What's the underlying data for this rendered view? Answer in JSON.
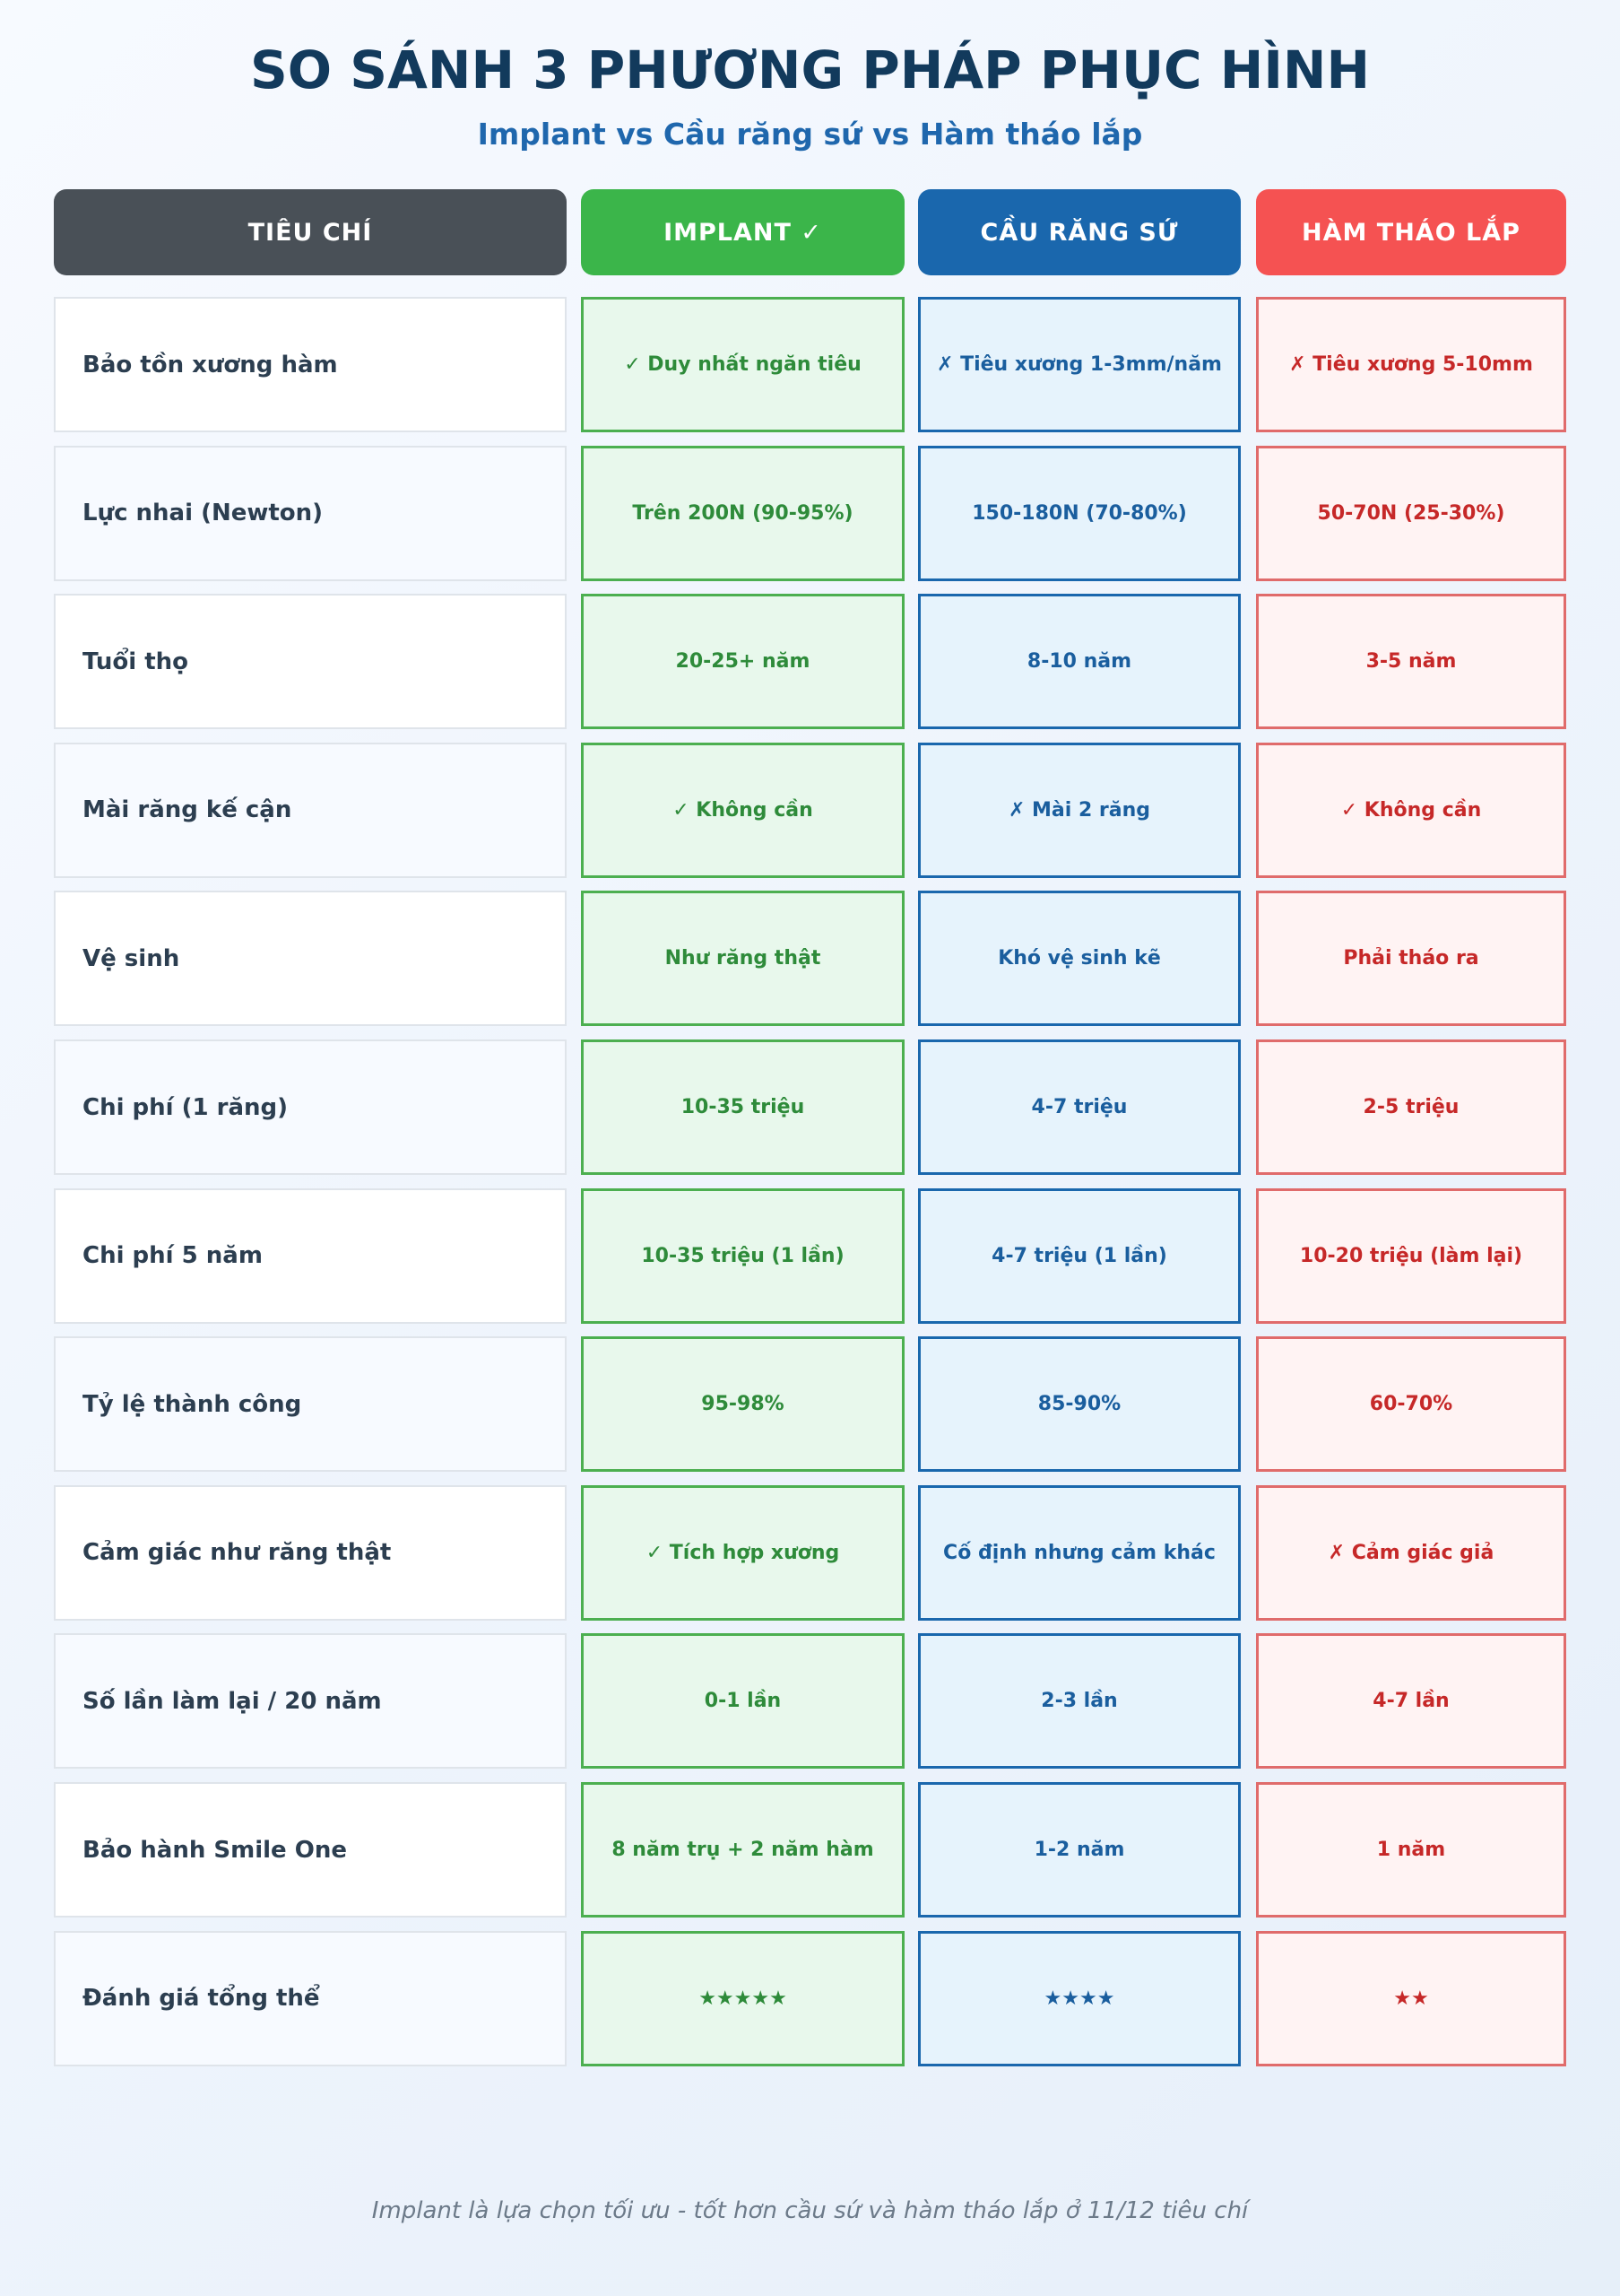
{
  "header": {
    "title": "SO SÁNH 3 PHƯƠNG PHÁP PHỤC HÌNH",
    "subtitle": "Implant vs Cầu răng sứ vs Hàm tháo lắp"
  },
  "table": {
    "columns": [
      "TIÊU CHÍ",
      "IMPLANT ✓",
      "CẦU RĂNG SỨ",
      "HÀM THÁO LẮP"
    ],
    "rows": [
      [
        "Bảo tồn xương hàm",
        "✓ Duy nhất ngăn tiêu",
        "✗ Tiêu xương 1-3mm/năm",
        "✗ Tiêu xương 5-10mm"
      ],
      [
        "Lực nhai (Newton)",
        "Trên 200N (90-95%)",
        "150-180N (70-80%)",
        "50-70N (25-30%)"
      ],
      [
        "Tuổi thọ",
        "20-25+ năm",
        "8-10 năm",
        "3-5 năm"
      ],
      [
        "Mài răng kế cận",
        "✓ Không cần",
        "✗ Mài 2 răng",
        "✓ Không cần"
      ],
      [
        "Vệ sinh",
        "Như răng thật",
        "Khó vệ sinh kẽ",
        "Phải tháo ra"
      ],
      [
        "Chi phí (1 răng)",
        "10-35 triệu",
        "4-7 triệu",
        "2-5 triệu"
      ],
      [
        "Chi phí 5 năm",
        "10-35 triệu (1 lần)",
        "4-7 triệu (1 lần)",
        "10-20 triệu (làm lại)"
      ],
      [
        "Tỷ lệ thành công",
        "95-98%",
        "85-90%",
        "60-70%"
      ],
      [
        "Cảm giác như răng thật",
        "✓ Tích hợp xương",
        "Cố định nhưng cảm khác",
        "✗ Cảm giác giả"
      ],
      [
        "Số lần làm lại / 20 năm",
        "0-1 lần",
        "2-3 lần",
        "4-7 lần"
      ],
      [
        "Bảo hành Smile One",
        "8 năm trụ + 2 năm hàm",
        "1-2 năm",
        "1 năm"
      ],
      [
        "Đánh giá tổng thể",
        "★★★★★",
        "★★★★",
        "★★"
      ]
    ]
  },
  "footer": "Implant là lựa chọn tối ưu - tốt hơn cầu sứ và hàm tháo lắp ở 11/12 tiêu chí"
}
